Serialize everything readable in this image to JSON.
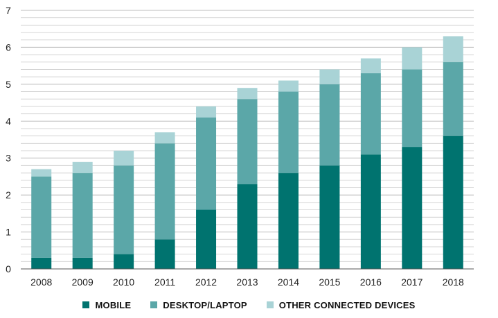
{
  "chart_data": {
    "type": "bar",
    "stacked": true,
    "title": "",
    "xlabel": "",
    "ylabel": "",
    "categories": [
      "2008",
      "2009",
      "2010",
      "2011",
      "2012",
      "2013",
      "2014",
      "2015",
      "2016",
      "2017",
      "2018"
    ],
    "ylim": [
      0,
      7
    ],
    "yticks": [
      0,
      1,
      2,
      3,
      4,
      5,
      6,
      7
    ],
    "grid": true,
    "legend_position": "bottom",
    "series": [
      {
        "name": "MOBILE",
        "color": "#00736f",
        "values": [
          0.3,
          0.3,
          0.4,
          0.8,
          1.6,
          2.3,
          2.6,
          2.8,
          3.1,
          3.3,
          3.6
        ]
      },
      {
        "name": "DESKTOP/LAPTOP",
        "color": "#5ba7a8",
        "values": [
          2.2,
          2.3,
          2.4,
          2.6,
          2.5,
          2.3,
          2.2,
          2.2,
          2.2,
          2.1,
          2.0
        ]
      },
      {
        "name": "OTHER CONNECTED DEVICES",
        "color": "#a9d3d6",
        "values": [
          0.2,
          0.3,
          0.4,
          0.3,
          0.3,
          0.3,
          0.3,
          0.4,
          0.4,
          0.6,
          0.7
        ]
      }
    ]
  }
}
